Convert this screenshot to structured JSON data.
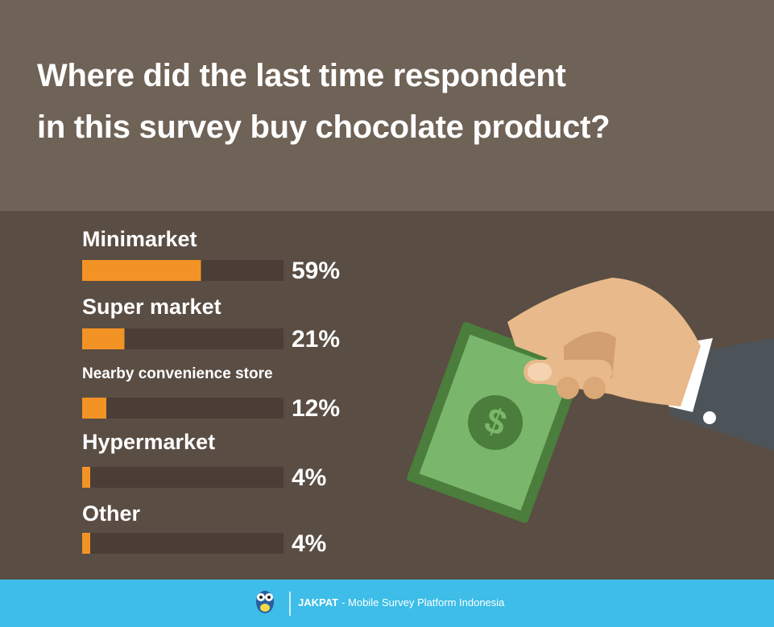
{
  "chart_data": {
    "type": "hbar",
    "title": "Where did the last time respondent\nin this survey buy chocolate product?",
    "categories": [
      "Minimarket",
      "Super market",
      "Nearby convenience store",
      "Hypermarket",
      "Other"
    ],
    "values": [
      59,
      21,
      12,
      4,
      4
    ],
    "value_labels": [
      "59%",
      "21%",
      "12%",
      "4%",
      "4%"
    ],
    "color": "#f39325",
    "xlim": [
      0,
      100
    ]
  },
  "footer": {
    "brand": "JAKPAT",
    "tagline": "- Mobile Survey Platform Indonesia"
  }
}
